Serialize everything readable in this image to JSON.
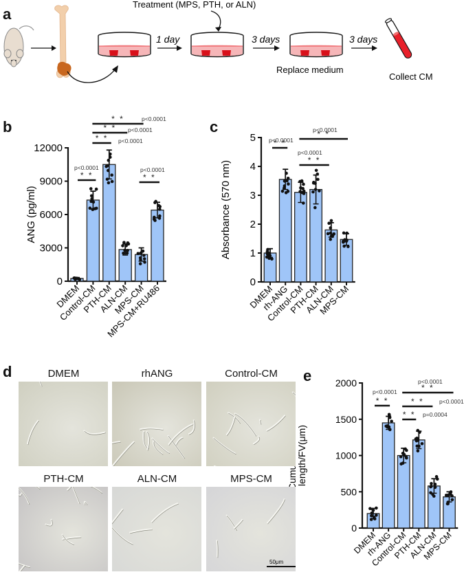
{
  "panels": {
    "a": {
      "label": "a",
      "treatment_label": "Treatment (MPS, PTH, or ALN)",
      "steps": [
        "1 day",
        "3 days",
        "3 days"
      ],
      "replace_label": "Replace medium",
      "collect_label": "Collect CM",
      "icons": [
        "mouse-icon",
        "bone-icon",
        "culture-dish-icon",
        "culture-dish-icon",
        "culture-dish-icon",
        "test-tube-icon"
      ]
    },
    "b": {
      "label": "b"
    },
    "c": {
      "label": "c"
    },
    "d": {
      "label": "d",
      "images": [
        {
          "title": "DMEM",
          "tone": "#cfcfc0"
        },
        {
          "title": "rhANG",
          "tone": "#c9c7b6"
        },
        {
          "title": "Control-CM",
          "tone": "#d0cfbf"
        },
        {
          "title": "PTH-CM",
          "tone": "#c4c2c3"
        },
        {
          "title": "ALN-CM",
          "tone": "#d7d8d6"
        },
        {
          "title": "MPS-CM",
          "tone": "#d5d5d8"
        }
      ],
      "scale_bar": "50μm"
    },
    "e": {
      "label": "e"
    }
  },
  "colors": {
    "bar_fill": "#9fc5f8",
    "bar_stroke": "#222222",
    "dots": "#111111",
    "dish_red": "#e8202a",
    "dish_pink": "#f6b6b8",
    "bone": "#f0cfae",
    "bone_end": "#c8671f"
  },
  "chart_data": [
    {
      "id": "b",
      "type": "bar",
      "title": "",
      "ylabel": "ANG (pg/ml)",
      "xlabel": "",
      "ylim": [
        0,
        12000
      ],
      "yticks": [
        0,
        3000,
        6000,
        9000,
        12000
      ],
      "categories": [
        "DMEM",
        "Control-CM",
        "PTH-CM",
        "ALN-CM",
        "MPS-CM",
        "MPS-CM+RU486"
      ],
      "values": [
        250,
        7300,
        10500,
        2850,
        2400,
        6400
      ],
      "error": [
        80,
        800,
        1300,
        500,
        600,
        700
      ],
      "annotations": [
        {
          "from": "DMEM",
          "to": "Control-CM",
          "stars": "**",
          "p": "p<0.0001"
        },
        {
          "from": "Control-CM",
          "to": "PTH-CM",
          "stars": "**",
          "p": "p<0.0001"
        },
        {
          "from": "Control-CM",
          "to": "ALN-CM",
          "stars": "**",
          "p": "p<0.0001"
        },
        {
          "from": "Control-CM",
          "to": "MPS-CM",
          "stars": "**",
          "p": "p<0.0001"
        },
        {
          "from": "MPS-CM",
          "to": "MPS-CM+RU486",
          "stars": "**",
          "p": "p<0.0001"
        }
      ],
      "grid": false,
      "legend": null
    },
    {
      "id": "c",
      "type": "bar",
      "title": "",
      "ylabel": "Absorbance (570 nm)",
      "xlabel": "",
      "ylim": [
        0,
        5
      ],
      "yticks": [
        0,
        1,
        2,
        3,
        4,
        5
      ],
      "categories": [
        "DMEM",
        "rh-ANG",
        "Control-CM",
        "PTH-CM",
        "ALN-CM",
        "MPS-CM"
      ],
      "values": [
        1.0,
        3.55,
        3.1,
        3.2,
        1.8,
        1.47
      ],
      "error": [
        0.15,
        0.35,
        0.35,
        0.5,
        0.25,
        0.2
      ],
      "annotations": [
        {
          "from": "DMEM",
          "to": "rh-ANG",
          "stars": "**",
          "p": "p<0.0001"
        },
        {
          "from": "Control-CM",
          "to": "ALN-CM",
          "stars": "**",
          "p": "p<0.0001"
        },
        {
          "from": "Control-CM",
          "to": "MPS-CM",
          "stars": "**",
          "p": "p<0.0001"
        }
      ],
      "grid": false,
      "legend": null
    },
    {
      "id": "e",
      "type": "bar",
      "title": "",
      "ylabel": "Cumulative tube length/FV(μm)",
      "xlabel": "",
      "ylim": [
        0,
        2000
      ],
      "yticks": [
        0,
        500,
        1000,
        1500,
        2000
      ],
      "categories": [
        "DMEM",
        "rh-ANG",
        "Control-CM",
        "PTH-CM",
        "ALN-CM",
        "MPS-CM"
      ],
      "values": [
        200,
        1450,
        1000,
        1215,
        580,
        430
      ],
      "error": [
        70,
        90,
        100,
        120,
        100,
        70
      ],
      "annotations": [
        {
          "from": "DMEM",
          "to": "rh-ANG",
          "stars": "**",
          "p": "p<0.0001"
        },
        {
          "from": "Control-CM",
          "to": "PTH-CM",
          "stars": "**",
          "p": "p=0.0004"
        },
        {
          "from": "Control-CM",
          "to": "ALN-CM",
          "stars": "**",
          "p": "p<0.0001"
        },
        {
          "from": "Control-CM",
          "to": "MPS-CM",
          "stars": "**",
          "p": "p<0.0001"
        }
      ],
      "grid": false,
      "legend": null
    }
  ]
}
